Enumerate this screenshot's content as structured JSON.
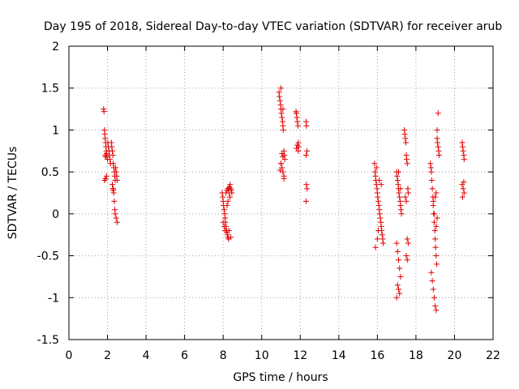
{
  "chart_data": {
    "type": "scatter",
    "title": "Day 195 of 2018, Sidereal Day-to-day VTEC variation (SDTVAR) for receiver arub",
    "xlabel": "GPS time / hours",
    "ylabel": "SDTVAR / TECUs",
    "xlim": [
      0,
      22
    ],
    "ylim": [
      -1.5,
      2
    ],
    "x_ticks": [
      0,
      2,
      4,
      6,
      8,
      10,
      12,
      14,
      16,
      18,
      20,
      22
    ],
    "y_ticks": [
      -1.5,
      -1,
      -0.5,
      0,
      0.5,
      1,
      1.5,
      2
    ],
    "x_tick_labels": [
      "0",
      "2",
      "4",
      "6",
      "8",
      "10",
      "12",
      "14",
      "16",
      "18",
      "20",
      "22"
    ],
    "y_tick_labels": [
      "-1.5",
      "-1",
      "-0.5",
      "0",
      "0.5",
      "1",
      "1.5",
      "2"
    ],
    "grid": true,
    "marker": "+",
    "marker_color": "#e00000",
    "series": [
      {
        "name": "SDTVAR",
        "x": [
          1.8,
          1.82,
          1.84,
          1.86,
          1.88,
          1.9,
          1.92,
          1.94,
          1.96,
          1.98,
          2.0,
          2.02,
          2.05,
          2.08,
          2.1,
          2.13,
          2.16,
          1.85,
          1.9,
          1.95,
          1.88,
          1.9,
          2.2,
          2.22,
          2.25,
          2.28,
          2.3,
          2.33,
          2.36,
          2.38,
          2.4,
          2.42,
          2.45,
          2.48,
          2.5,
          2.3,
          2.32,
          2.35,
          2.38,
          2.4,
          2.45,
          2.5,
          2.25,
          2.28,
          2.3,
          7.95,
          7.98,
          8.0,
          8.02,
          8.05,
          8.08,
          8.1,
          8.12,
          8.15,
          8.18,
          8.2,
          8.22,
          8.25,
          8.28,
          8.3,
          8.33,
          8.36,
          8.4,
          8.42,
          8.45,
          8.0,
          8.05,
          8.1,
          8.15,
          8.2,
          8.25,
          8.3,
          8.35,
          8.4,
          8.2,
          8.25,
          8.3,
          10.9,
          10.92,
          10.95,
          10.98,
          11.0,
          11.02,
          11.05,
          11.08,
          11.1,
          11.12,
          11.15,
          11.18,
          11.2,
          11.0,
          11.05,
          11.1,
          11.15,
          11.0,
          11.05,
          11.1,
          11.15,
          10.95,
          11.0,
          11.1,
          11.78,
          11.8,
          11.82,
          11.85,
          11.88,
          11.9,
          11.92,
          11.8,
          11.85,
          11.9,
          12.3,
          12.32,
          12.35,
          12.3,
          12.32,
          12.35,
          12.3,
          15.85,
          15.88,
          15.9,
          15.92,
          15.95,
          15.98,
          16.0,
          16.02,
          16.05,
          16.08,
          16.1,
          16.12,
          16.15,
          16.18,
          16.2,
          16.22,
          16.25,
          16.28,
          16.3,
          15.9,
          16.0,
          16.1,
          16.2,
          15.95,
          16.05,
          17.0,
          17.02,
          17.05,
          17.08,
          17.1,
          17.12,
          17.15,
          17.18,
          17.2,
          17.22,
          17.25,
          17.0,
          17.05,
          17.1,
          17.15,
          17.2,
          17.05,
          17.1,
          17.15,
          17.0,
          17.1,
          17.2,
          17.4,
          17.42,
          17.45,
          17.48,
          17.5,
          17.52,
          17.55,
          17.58,
          17.6,
          17.45,
          17.5,
          17.55,
          17.6,
          17.5,
          17.55,
          18.75,
          18.78,
          18.8,
          18.82,
          18.85,
          18.88,
          18.9,
          18.92,
          18.95,
          18.98,
          19.0,
          19.02,
          19.05,
          19.08,
          19.1,
          19.12,
          19.15,
          19.18,
          19.2,
          18.8,
          18.85,
          18.9,
          18.95,
          19.0,
          19.05,
          19.1,
          19.15,
          18.9,
          19.0,
          19.05,
          19.1,
          18.95,
          19.05,
          20.4,
          20.42,
          20.45,
          20.48,
          20.5,
          20.4,
          20.45,
          20.5,
          20.42,
          20.48
        ],
        "y": [
          1.25,
          1.22,
          1.0,
          0.95,
          0.9,
          0.85,
          0.8,
          0.75,
          0.72,
          0.68,
          0.65,
          0.85,
          0.8,
          0.75,
          0.7,
          0.65,
          0.6,
          0.4,
          0.42,
          0.45,
          0.7,
          0.68,
          0.85,
          0.8,
          0.75,
          0.7,
          0.6,
          0.55,
          0.5,
          0.45,
          0.4,
          0.55,
          0.5,
          0.45,
          0.4,
          0.3,
          0.25,
          0.15,
          0.05,
          0.0,
          -0.05,
          -0.1,
          0.35,
          0.3,
          0.28,
          0.25,
          0.2,
          0.15,
          0.1,
          0.05,
          0.0,
          -0.05,
          -0.1,
          -0.15,
          -0.2,
          -0.22,
          -0.25,
          -0.28,
          -0.3,
          0.3,
          0.32,
          0.35,
          0.3,
          0.28,
          0.25,
          -0.1,
          -0.15,
          -0.2,
          0.25,
          0.28,
          0.3,
          0.25,
          0.2,
          -0.28,
          0.1,
          0.15,
          -0.2,
          1.45,
          1.4,
          1.35,
          1.3,
          1.25,
          1.2,
          1.15,
          1.1,
          1.05,
          1.0,
          0.75,
          0.7,
          0.65,
          0.6,
          0.55,
          0.5,
          0.45,
          1.5,
          0.72,
          0.68,
          0.42,
          0.52,
          0.6,
          1.25,
          1.22,
          1.2,
          1.15,
          1.1,
          1.05,
          0.85,
          0.8,
          0.78,
          0.82,
          0.75,
          1.1,
          1.05,
          0.75,
          0.7,
          0.35,
          0.3,
          0.15,
          0.6,
          0.5,
          0.45,
          0.4,
          0.35,
          0.3,
          0.25,
          0.2,
          0.15,
          0.1,
          0.05,
          0.0,
          -0.05,
          -0.1,
          -0.15,
          -0.2,
          -0.25,
          -0.3,
          -0.35,
          -0.4,
          -0.3,
          0.4,
          0.35,
          0.55,
          -0.2,
          0.5,
          0.45,
          0.4,
          0.35,
          0.3,
          0.25,
          0.2,
          0.15,
          0.1,
          0.05,
          0.0,
          -0.35,
          -0.45,
          -0.55,
          -0.65,
          -0.75,
          -0.85,
          -0.9,
          -0.95,
          -1.0,
          0.5,
          0.3,
          1.0,
          0.95,
          0.9,
          0.85,
          0.7,
          0.65,
          0.6,
          0.3,
          0.25,
          0.2,
          0.15,
          -0.3,
          -0.35,
          -0.5,
          -0.55,
          0.6,
          0.55,
          0.5,
          0.4,
          0.3,
          0.2,
          0.1,
          0.0,
          -0.1,
          -0.2,
          -0.3,
          -0.4,
          -0.5,
          -0.6,
          0.9,
          0.85,
          0.8,
          0.75,
          0.7,
          -0.7,
          -0.8,
          -0.9,
          -1.0,
          -1.1,
          -1.15,
          1.0,
          1.2,
          0.15,
          0.2,
          0.25,
          -0.05,
          0.0,
          -0.15,
          0.85,
          0.8,
          0.75,
          0.7,
          0.65,
          0.35,
          0.3,
          0.25,
          0.2,
          0.38
        ]
      }
    ]
  }
}
